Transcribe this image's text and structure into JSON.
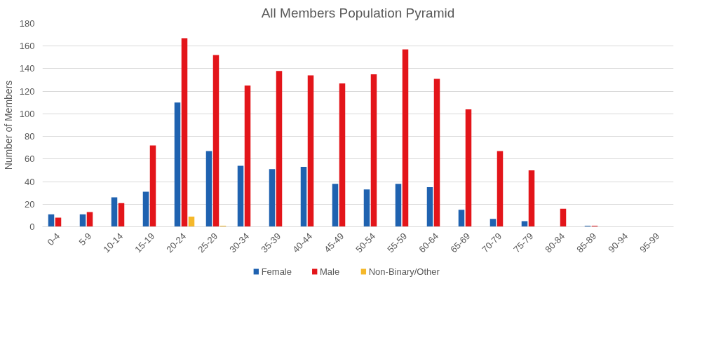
{
  "chart_data": {
    "type": "bar",
    "title": "All Members Population Pyramid",
    "ylabel": "Number of Members",
    "categories": [
      "0-4",
      "5-9",
      "10-14",
      "15-19",
      "20-24",
      "25-29",
      "30-34",
      "35-39",
      "40-44",
      "45-49",
      "50-54",
      "55-59",
      "60-64",
      "65-69",
      "70-79",
      "75-79",
      "80-84",
      "85-89",
      "90-94",
      "95-99"
    ],
    "series": [
      {
        "name": "Female",
        "color": "#1f62b0",
        "values": [
          11,
          11,
          26,
          31,
          110,
          67,
          54,
          51,
          53,
          38,
          33,
          38,
          35,
          15,
          7,
          5,
          0,
          1,
          0,
          0
        ]
      },
      {
        "name": "Male",
        "color": "#e3151a",
        "values": [
          8,
          13,
          21,
          72,
          167,
          152,
          125,
          138,
          134,
          127,
          135,
          157,
          131,
          104,
          67,
          50,
          16,
          1,
          0,
          0
        ]
      },
      {
        "name": "Non-Binary/Other",
        "color": "#f5b82a",
        "values": [
          0,
          0,
          0,
          0,
          9,
          1,
          0,
          0,
          0,
          0,
          0,
          0,
          0,
          0,
          0,
          0,
          0,
          0,
          0,
          0
        ]
      }
    ],
    "ylim": [
      0,
      180
    ],
    "yticks": [
      0,
      20,
      40,
      60,
      80,
      100,
      120,
      140,
      160,
      180
    ],
    "grid": "y",
    "legend": "bottom"
  }
}
